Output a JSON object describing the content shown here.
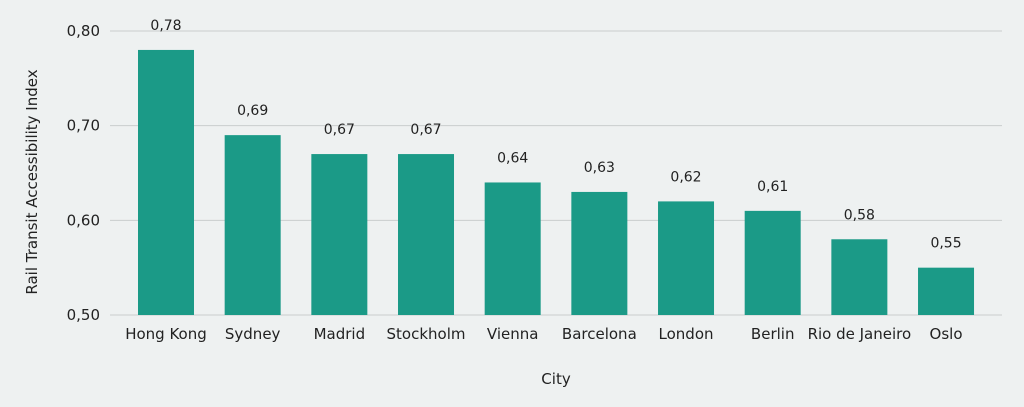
{
  "chart_data": {
    "type": "bar",
    "categories": [
      "Hong Kong",
      "Sydney",
      "Madrid",
      "Stockholm",
      "Vienna",
      "Barcelona",
      "London",
      "Berlin",
      "Rio de Janeiro",
      "Oslo"
    ],
    "values": [
      0.78,
      0.69,
      0.67,
      0.67,
      0.64,
      0.63,
      0.62,
      0.61,
      0.58,
      0.55
    ],
    "data_labels": [
      "0,78",
      "0,69",
      "0,67",
      "0,67",
      "0,64",
      "0,63",
      "0,62",
      "0,61",
      "0,58",
      "0,55"
    ],
    "yticks": [
      "0,50",
      "0,60",
      "0,70",
      "0,80"
    ],
    "ytick_values": [
      0.5,
      0.6,
      0.7,
      0.8
    ],
    "title": "",
    "xlabel": "City",
    "ylabel": "Rail Transit Accessibility Index",
    "ylim": [
      0.5,
      0.8
    ],
    "grid": true,
    "legend": "none",
    "colors": {
      "bar": "#1b9a87",
      "background": "#eef1f1",
      "grid": "#c9cdcd"
    }
  }
}
